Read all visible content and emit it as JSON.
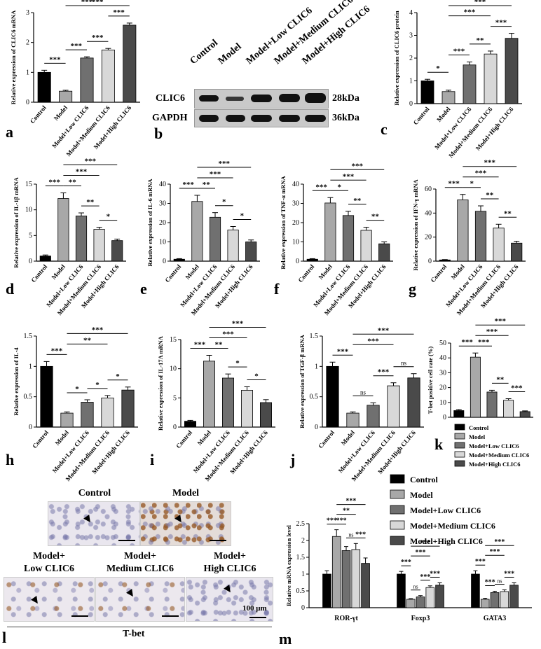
{
  "colors": {
    "control": "#000000",
    "model": "#a8a8a8",
    "low": "#707070",
    "medium": "#d8d8d8",
    "high": "#4a4a4a"
  },
  "panel_labels": {
    "a": "a",
    "b": "b",
    "c": "c",
    "d": "d",
    "e": "e",
    "f": "f",
    "g": "g",
    "h": "h",
    "i": "i",
    "j": "j",
    "k": "k",
    "l": "l",
    "m": "m"
  },
  "groups": [
    "Control",
    "Model",
    "Model+Low CLIC6",
    "Model+Medium CLIC6",
    "Model+High CLIC6"
  ],
  "blot": {
    "lanes": [
      "Control",
      "Model",
      "Model+Low CLIC6",
      "Model+Medium CLIC6",
      "Model+High CLIC6"
    ],
    "rows": [
      {
        "name": "CLIC6",
        "size": "28kDa"
      },
      {
        "name": "GAPDH",
        "size": "36kDa"
      }
    ]
  },
  "histology": {
    "title": "T-bet",
    "scale": "100 μm",
    "panels": [
      {
        "label": "Control"
      },
      {
        "label": "Model"
      },
      {
        "label": "Model+\nLow CLIC6"
      },
      {
        "label": "Model+\nMedium CLIC6"
      },
      {
        "label": "Model+\nHigh CLIC6"
      }
    ]
  },
  "chart_data": [
    {
      "id": "a",
      "type": "bar",
      "ylabel": "Relative expression of CLIC6 mRNA",
      "ylim": [
        0,
        3
      ],
      "yticks": [
        0,
        1,
        2,
        3
      ],
      "categories": [
        "Control",
        "Model",
        "Model+Low CLIC6",
        "Model+Medium CLIC6",
        "Model+High CLIC6"
      ],
      "values": [
        1.0,
        0.37,
        1.48,
        1.75,
        2.58
      ],
      "errors": [
        0.07,
        0.03,
        0.04,
        0.05,
        0.07
      ],
      "sig": [
        {
          "a": 0,
          "b": 1,
          "t": "***"
        },
        {
          "a": 1,
          "b": 2,
          "t": "***"
        },
        {
          "a": 2,
          "b": 3,
          "t": "***"
        },
        {
          "a": 1,
          "b": 3,
          "t": "***"
        },
        {
          "a": 3,
          "b": 4,
          "t": "***"
        },
        {
          "a": 1,
          "b": 4,
          "t": "***"
        }
      ]
    },
    {
      "id": "c",
      "type": "bar",
      "ylabel": "Relative expression of CLIC6 protein",
      "ylim": [
        0,
        4
      ],
      "yticks": [
        0,
        1,
        2,
        3,
        4
      ],
      "categories": [
        "Control",
        "Model",
        "Model+Low CLIC6",
        "Model+Medium CLIC6",
        "Model+High CLIC6"
      ],
      "values": [
        1.0,
        0.53,
        1.7,
        2.18,
        2.87
      ],
      "errors": [
        0.07,
        0.06,
        0.13,
        0.13,
        0.22
      ],
      "sig": [
        {
          "a": 0,
          "b": 1,
          "t": "*"
        },
        {
          "a": 1,
          "b": 2,
          "t": "***"
        },
        {
          "a": 2,
          "b": 3,
          "t": "**"
        },
        {
          "a": 1,
          "b": 3,
          "t": "***"
        },
        {
          "a": 3,
          "b": 4,
          "t": "***"
        },
        {
          "a": 1,
          "b": 4,
          "t": "***"
        }
      ]
    },
    {
      "id": "d",
      "type": "bar",
      "ylabel": "Relative expression of IL-1β mRNA",
      "ylim": [
        0,
        15
      ],
      "yticks": [
        0,
        5,
        10,
        15
      ],
      "categories": [
        "Control",
        "Model",
        "Model+Low CLIC6",
        "Model+Medium CLIC6",
        "Model+High CLIC6"
      ],
      "values": [
        1.0,
        12.2,
        8.8,
        6.2,
        4.0
      ],
      "errors": [
        0.2,
        1.1,
        0.6,
        0.4,
        0.3
      ],
      "sig": [
        {
          "a": 0,
          "b": 1,
          "t": "***"
        },
        {
          "a": 1,
          "b": 2,
          "t": "**"
        },
        {
          "a": 2,
          "b": 3,
          "t": "**"
        },
        {
          "a": 3,
          "b": 4,
          "t": "*"
        },
        {
          "a": 1,
          "b": 3,
          "t": "***"
        },
        {
          "a": 1,
          "b": 4,
          "t": "***"
        }
      ]
    },
    {
      "id": "e",
      "type": "bar",
      "ylabel": "Relative expression of IL-6 mRNA",
      "ylim": [
        0,
        40
      ],
      "yticks": [
        0,
        10,
        20,
        30,
        40
      ],
      "categories": [
        "Control",
        "Model",
        "Model+Low CLIC6",
        "Model+Medium CLIC6",
        "Model+High CLIC6"
      ],
      "values": [
        1.0,
        31.0,
        22.8,
        16.2,
        10.0
      ],
      "errors": [
        0.3,
        3.2,
        2.4,
        1.8,
        1.0
      ],
      "sig": [
        {
          "a": 0,
          "b": 1,
          "t": "***"
        },
        {
          "a": 1,
          "b": 2,
          "t": "**"
        },
        {
          "a": 2,
          "b": 3,
          "t": "*"
        },
        {
          "a": 3,
          "b": 4,
          "t": "*"
        },
        {
          "a": 1,
          "b": 3,
          "t": "***"
        },
        {
          "a": 1,
          "b": 4,
          "t": "***"
        }
      ]
    },
    {
      "id": "f",
      "type": "bar",
      "ylabel": "Relative expression of TNF-α mRNA",
      "ylim": [
        0,
        40
      ],
      "yticks": [
        0,
        10,
        20,
        30,
        40
      ],
      "categories": [
        "Control",
        "Model",
        "Model+Low CLIC6",
        "Model+Medium CLIC6",
        "Model+High CLIC6"
      ],
      "values": [
        1.0,
        30.2,
        23.7,
        16.0,
        9.0
      ],
      "errors": [
        0.3,
        2.8,
        2.2,
        1.6,
        1.0
      ],
      "sig": [
        {
          "a": 0,
          "b": 1,
          "t": "***"
        },
        {
          "a": 1,
          "b": 2,
          "t": "*"
        },
        {
          "a": 2,
          "b": 3,
          "t": "**"
        },
        {
          "a": 3,
          "b": 4,
          "t": "**"
        },
        {
          "a": 1,
          "b": 3,
          "t": "***"
        },
        {
          "a": 1,
          "b": 4,
          "t": "***"
        }
      ]
    },
    {
      "id": "g",
      "type": "bar",
      "ylabel": "Relative expression of IFN-γ mRNA",
      "ylim": [
        0,
        60
      ],
      "yticks": [
        0,
        20,
        40,
        60
      ],
      "categories": [
        "Control",
        "Model",
        "Model+Low CLIC6",
        "Model+Medium CLIC6",
        "Model+High CLIC6"
      ],
      "values": [
        1.0,
        51.0,
        41.5,
        27.5,
        15.0
      ],
      "errors": [
        0.3,
        4.5,
        4.5,
        3.2,
        1.6
      ],
      "sig": [
        {
          "a": 0,
          "b": 1,
          "t": "***"
        },
        {
          "a": 1,
          "b": 2,
          "t": "*"
        },
        {
          "a": 2,
          "b": 3,
          "t": "**"
        },
        {
          "a": 3,
          "b": 4,
          "t": "**"
        },
        {
          "a": 1,
          "b": 3,
          "t": "***"
        },
        {
          "a": 1,
          "b": 4,
          "t": "***"
        }
      ]
    },
    {
      "id": "h",
      "type": "bar",
      "ylabel": "Relative expression of IL-4",
      "ylim": [
        0,
        1.5
      ],
      "yticks": [
        0,
        0.5,
        1.0,
        1.5
      ],
      "categories": [
        "Control",
        "Model",
        "Model+Low CLIC6",
        "Model+Medium CLIC6",
        "Model+High CLIC6"
      ],
      "values": [
        1.0,
        0.23,
        0.41,
        0.48,
        0.61
      ],
      "errors": [
        0.08,
        0.02,
        0.04,
        0.04,
        0.05
      ],
      "sig": [
        {
          "a": 0,
          "b": 1,
          "t": "***"
        },
        {
          "a": 1,
          "b": 2,
          "t": "*"
        },
        {
          "a": 2,
          "b": 3,
          "t": "*"
        },
        {
          "a": 3,
          "b": 4,
          "t": "*"
        },
        {
          "a": 1,
          "b": 3,
          "t": "**"
        },
        {
          "a": 1,
          "b": 4,
          "t": "***"
        }
      ]
    },
    {
      "id": "i",
      "type": "bar",
      "ylabel": "Relative expression of IL-17A mRNA",
      "ylim": [
        0,
        15
      ],
      "yticks": [
        0,
        5,
        10,
        15
      ],
      "categories": [
        "Control",
        "Model",
        "Model+Low CLIC6",
        "Model+Medium CLIC6",
        "Model+High CLIC6"
      ],
      "values": [
        1.0,
        11.3,
        8.4,
        6.3,
        4.2
      ],
      "errors": [
        0.15,
        1.0,
        0.7,
        0.6,
        0.5
      ],
      "sig": [
        {
          "a": 0,
          "b": 1,
          "t": "***"
        },
        {
          "a": 1,
          "b": 2,
          "t": "**"
        },
        {
          "a": 2,
          "b": 3,
          "t": "*"
        },
        {
          "a": 3,
          "b": 4,
          "t": "*"
        },
        {
          "a": 1,
          "b": 3,
          "t": "***"
        },
        {
          "a": 1,
          "b": 4,
          "t": "***"
        }
      ]
    },
    {
      "id": "j",
      "type": "bar",
      "ylabel": "Relative expression of TGF-β mRNA",
      "ylim": [
        0,
        1.5
      ],
      "yticks": [
        0,
        0.5,
        1.0,
        1.5
      ],
      "categories": [
        "Control",
        "Model",
        "Model+Low CLIC6",
        "Model+Medium CLIC6",
        "Model+High CLIC6"
      ],
      "values": [
        1.0,
        0.23,
        0.36,
        0.68,
        0.81
      ],
      "errors": [
        0.07,
        0.02,
        0.04,
        0.05,
        0.07
      ],
      "sig": [
        {
          "a": 0,
          "b": 1,
          "t": "***"
        },
        {
          "a": 1,
          "b": 2,
          "t": "ns"
        },
        {
          "a": 2,
          "b": 3,
          "t": "***"
        },
        {
          "a": 3,
          "b": 4,
          "t": "ns"
        },
        {
          "a": 1,
          "b": 3,
          "t": "***"
        },
        {
          "a": 1,
          "b": 4,
          "t": "***"
        }
      ]
    },
    {
      "id": "k",
      "type": "bar",
      "ylabel": "T-bet positive cell rate (%)",
      "ylim": [
        0,
        50
      ],
      "yticks": [
        0,
        10,
        20,
        30,
        40,
        50
      ],
      "categories": [
        "Control",
        "Model",
        "Model+Low CLIC6",
        "Model+Medium CLIC6",
        "Model+High CLIC6"
      ],
      "values": [
        4.5,
        40.5,
        17.0,
        11.5,
        3.8
      ],
      "errors": [
        0.7,
        2.8,
        1.2,
        1.0,
        0.5
      ],
      "legend": [
        "Control",
        "Model",
        "Model+Low CLIC6",
        "Model+Medium CLIC6",
        "Model+High CLIC6"
      ],
      "sig": [
        {
          "a": 0,
          "b": 1,
          "t": "***"
        },
        {
          "a": 1,
          "b": 2,
          "t": "***"
        },
        {
          "a": 2,
          "b": 3,
          "t": "**"
        },
        {
          "a": 3,
          "b": 4,
          "t": "***"
        },
        {
          "a": 1,
          "b": 3,
          "t": "***"
        },
        {
          "a": 1,
          "b": 4,
          "t": "***"
        }
      ]
    },
    {
      "id": "m",
      "type": "bar",
      "ylabel": "Relative mRNA expression level",
      "ylim": [
        0,
        2.5
      ],
      "yticks": [
        0,
        0.5,
        1.0,
        1.5,
        2.0,
        2.5
      ],
      "categories": [
        "ROR-γt",
        "Foxp3",
        "GATA3"
      ],
      "series": [
        {
          "name": "Control",
          "values": [
            1.0,
            1.0,
            1.0
          ],
          "errors": [
            0.1,
            0.08,
            0.1
          ]
        },
        {
          "name": "Model",
          "values": [
            2.12,
            0.25,
            0.25
          ],
          "errors": [
            0.2,
            0.02,
            0.03
          ]
        },
        {
          "name": "Model+Low CLIC6",
          "values": [
            1.7,
            0.32,
            0.45
          ],
          "errors": [
            0.12,
            0.04,
            0.04
          ]
        },
        {
          "name": "Model+Medium CLIC6",
          "values": [
            1.73,
            0.6,
            0.48
          ],
          "errors": [
            0.18,
            0.05,
            0.05
          ]
        },
        {
          "name": "Model+High CLIC6",
          "values": [
            1.32,
            0.67,
            0.67
          ],
          "errors": [
            0.16,
            0.07,
            0.07
          ]
        }
      ],
      "sig_groups": [
        [
          {
            "a": 0,
            "b": 1,
            "t": "***"
          },
          {
            "a": 1,
            "b": 2,
            "t": "***"
          },
          {
            "a": 2,
            "b": 3,
            "t": "ns"
          },
          {
            "a": 3,
            "b": 4,
            "t": "***"
          },
          {
            "a": 1,
            "b": 3,
            "t": "**"
          },
          {
            "a": 1,
            "b": 4,
            "t": "***"
          }
        ],
        [
          {
            "a": 0,
            "b": 1,
            "t": "***"
          },
          {
            "a": 1,
            "b": 2,
            "t": "ns"
          },
          {
            "a": 2,
            "b": 3,
            "t": "***"
          },
          {
            "a": 3,
            "b": 4,
            "t": "***"
          },
          {
            "a": 1,
            "b": 3,
            "t": "***"
          },
          {
            "a": 1,
            "b": 4,
            "t": "***"
          }
        ],
        [
          {
            "a": 0,
            "b": 1,
            "t": "***"
          },
          {
            "a": 1,
            "b": 2,
            "t": "***"
          },
          {
            "a": 2,
            "b": 3,
            "t": "ns"
          },
          {
            "a": 3,
            "b": 4,
            "t": "***"
          },
          {
            "a": 1,
            "b": 3,
            "t": "***"
          },
          {
            "a": 1,
            "b": 4,
            "t": "***"
          }
        ]
      ]
    }
  ]
}
